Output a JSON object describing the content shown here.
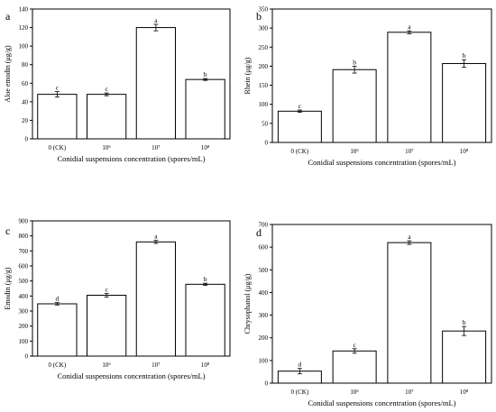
{
  "chart_data": [
    {
      "type": "bar",
      "panel": "a",
      "categories": [
        "0 (CK)",
        "10⁶",
        "10⁷",
        "10⁸"
      ],
      "values": [
        48,
        48,
        120,
        64
      ],
      "errors": [
        3,
        1.5,
        3.5,
        1
      ],
      "significance": [
        "c",
        "c",
        "a",
        "b"
      ],
      "xlabel": "Conidial suspensions concentration (spores/mL)",
      "ylabel": "Aloe emodin (μg/g)",
      "ylim": [
        0,
        140
      ],
      "yticks": [
        0,
        20,
        40,
        60,
        80,
        100,
        120,
        140
      ]
    },
    {
      "type": "bar",
      "panel": "b",
      "categories": [
        "0 (CK)",
        "10⁶",
        "10⁷",
        "10⁸"
      ],
      "values": [
        82,
        191,
        289,
        207
      ],
      "errors": [
        3,
        9,
        4,
        10
      ],
      "significance": [
        "c",
        "b",
        "a",
        "b"
      ],
      "xlabel": "Conidial suspensions concentration (spores/mL)",
      "ylabel": "Rhein (μg/g)",
      "ylim": [
        0,
        350
      ],
      "yticks": [
        0,
        50,
        100,
        150,
        200,
        250,
        300,
        350
      ]
    },
    {
      "type": "bar",
      "panel": "c",
      "categories": [
        "0 (CK)",
        "10⁶",
        "10⁷",
        "10⁸"
      ],
      "values": [
        348,
        405,
        760,
        478
      ],
      "errors": [
        8,
        12,
        10,
        7
      ],
      "significance": [
        "d",
        "c",
        "a",
        "b"
      ],
      "xlabel": "Conidial suspensions concentration (spores/mL)",
      "ylabel": "Emodin (μg/g)",
      "ylim": [
        0,
        900
      ],
      "yticks": [
        0,
        100,
        200,
        300,
        400,
        500,
        600,
        700,
        800,
        900
      ]
    },
    {
      "type": "bar",
      "panel": "d",
      "categories": [
        "0 (CK)",
        "10⁶",
        "10⁷",
        "10⁸"
      ],
      "values": [
        53,
        142,
        620,
        230
      ],
      "errors": [
        12,
        10,
        8,
        20
      ],
      "significance": [
        "d",
        "c",
        "a",
        "b"
      ],
      "xlabel": "Conidial suspensions concentration (spores/mL)",
      "ylabel": "Chrysophanol (μg/g)",
      "ylim": [
        0,
        700
      ],
      "yticks": [
        0,
        100,
        200,
        300,
        400,
        500,
        600,
        700
      ]
    }
  ]
}
